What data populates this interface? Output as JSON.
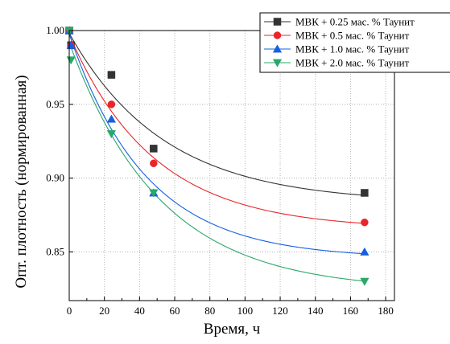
{
  "chart_data": {
    "type": "scatter",
    "xlabel": "Время, ч",
    "ylabel": "Опт. плотность (нормированная)",
    "xlim": [
      0,
      185
    ],
    "ylim": [
      0.817,
      1.0
    ],
    "xticks": [
      0,
      20,
      40,
      60,
      80,
      100,
      120,
      140,
      160,
      180
    ],
    "yticks": [
      0.85,
      0.9,
      0.95,
      1.0
    ],
    "xtick_labels": [
      "0",
      "20",
      "40",
      "60",
      "80",
      "100",
      "120",
      "140",
      "160",
      "180"
    ],
    "ytick_labels": [
      "0.85",
      "0.90",
      "0.95",
      "1.00"
    ],
    "grid": true,
    "grid_style": "dotted",
    "fit_lines": true,
    "legend_position": "top-right",
    "series": [
      {
        "name": "МВК + 0.25 мас. % Таунит",
        "marker": "square",
        "color": "#333333",
        "x": [
          0,
          1,
          24,
          48,
          168
        ],
        "y": [
          1.0,
          0.99,
          0.97,
          0.92,
          0.89
        ]
      },
      {
        "name": "МВК + 0.5 мас. % Таунит",
        "marker": "circle",
        "color": "#e8262a",
        "x": [
          0,
          1,
          24,
          48,
          168
        ],
        "y": [
          1.0,
          0.99,
          0.95,
          0.91,
          0.87
        ]
      },
      {
        "name": "МВК + 1.0 мас. % Таунит",
        "marker": "triangle-up",
        "color": "#1560e0",
        "x": [
          0,
          1,
          24,
          48,
          168
        ],
        "y": [
          1.0,
          0.99,
          0.94,
          0.89,
          0.85
        ]
      },
      {
        "name": "МВК + 2.0 мас. % Таунит",
        "marker": "triangle-down",
        "color": "#2aa86a",
        "x": [
          0,
          1,
          24,
          48,
          168
        ],
        "y": [
          1.0,
          0.98,
          0.93,
          0.89,
          0.83
        ]
      }
    ]
  }
}
